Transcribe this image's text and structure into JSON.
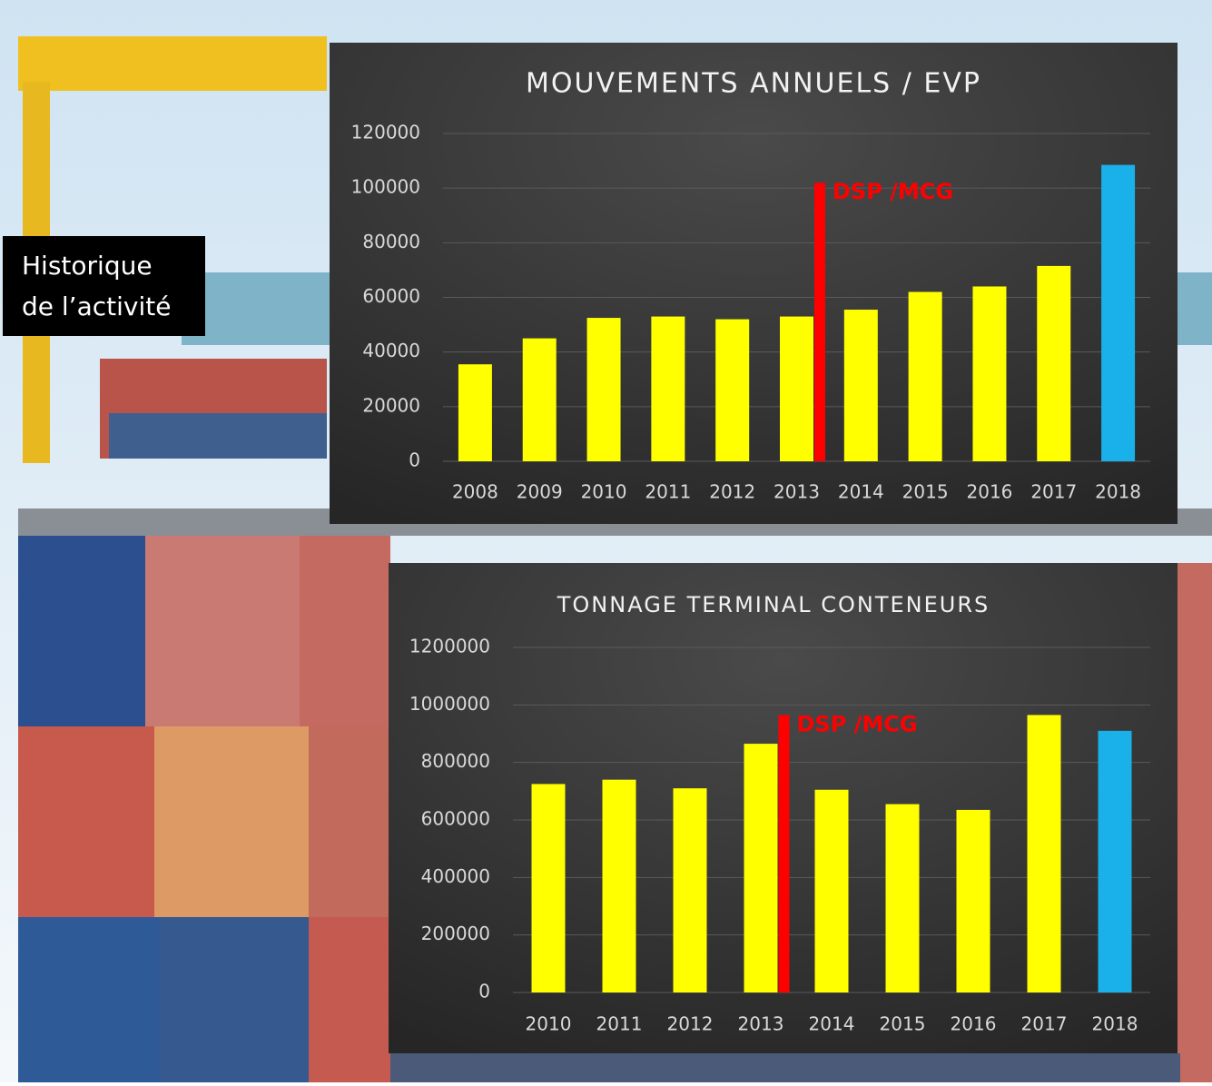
{
  "label": {
    "lines": [
      "Historique",
      "de l’activité"
    ]
  },
  "chart_data": [
    {
      "type": "bar",
      "title": "MOUVEMENTS ANNUELS / EVP",
      "categories": [
        "2008",
        "2009",
        "2010",
        "2011",
        "2012",
        "2013",
        "2014",
        "2015",
        "2016",
        "2017",
        "2018"
      ],
      "values": [
        35500,
        45000,
        52500,
        53000,
        52000,
        53000,
        55500,
        62000,
        64000,
        71500,
        108500
      ],
      "colors": [
        "#ffff00",
        "#ffff00",
        "#ffff00",
        "#ffff00",
        "#ffff00",
        "#ffff00",
        "#ffff00",
        "#ffff00",
        "#ffff00",
        "#ffff00",
        "#1ab0ea"
      ],
      "ylim": [
        0,
        120000
      ],
      "yticks": [
        0,
        20000,
        40000,
        60000,
        80000,
        100000,
        120000
      ],
      "grid": true,
      "annotation": {
        "text": "DSP /MCG",
        "x": "2013",
        "value": 102000,
        "color": "#ff0000"
      }
    },
    {
      "type": "bar",
      "title": "TONNAGE TERMINAL CONTENEURS",
      "categories": [
        "2010",
        "2011",
        "2012",
        "2013",
        "2014",
        "2015",
        "2016",
        "2017",
        "2018"
      ],
      "values": [
        725000,
        740000,
        710000,
        865000,
        705000,
        655000,
        635000,
        965000,
        910000
      ],
      "colors": [
        "#ffff00",
        "#ffff00",
        "#ffff00",
        "#ffff00",
        "#ffff00",
        "#ffff00",
        "#ffff00",
        "#ffff00",
        "#1ab0ea"
      ],
      "ylim": [
        0,
        1200000
      ],
      "yticks": [
        0,
        200000,
        400000,
        600000,
        800000,
        1000000,
        1200000
      ],
      "grid": true,
      "annotation": {
        "text": "DSP /MCG",
        "x": "2013",
        "value": 965000,
        "color": "#ff0000"
      }
    }
  ]
}
